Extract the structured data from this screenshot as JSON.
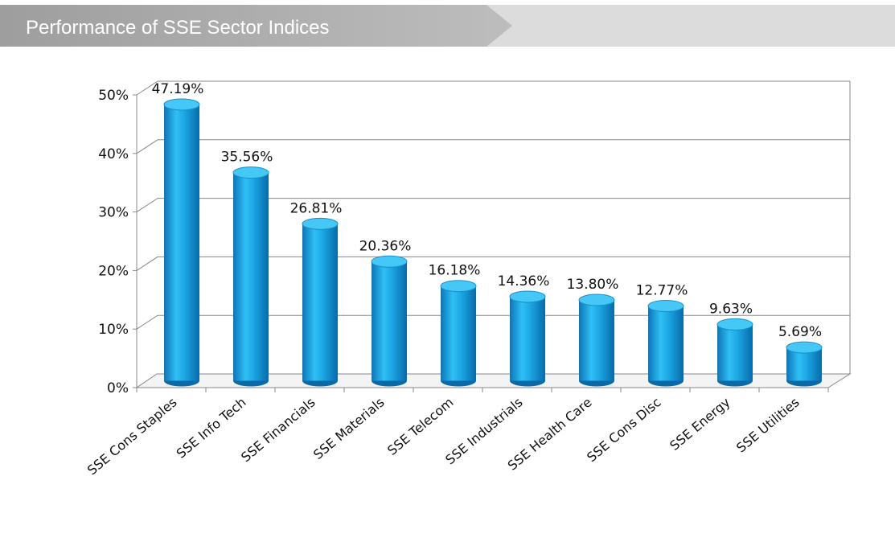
{
  "chart_data": {
    "type": "bar",
    "title": "Performance of SSE Sector Indices",
    "categories": [
      "SSE Cons Staples",
      "SSE Info Tech",
      "SSE Financials",
      "SSE Materials",
      "SSE Telecom",
      "SSE Industrials",
      "SSE Health Care",
      "SSE Cons Disc",
      "SSE Energy",
      "SSE Utilities"
    ],
    "values": [
      47.19,
      35.56,
      26.81,
      20.36,
      16.18,
      14.36,
      13.8,
      12.77,
      9.63,
      5.69
    ],
    "value_labels": [
      "47.19%",
      "35.56%",
      "26.81%",
      "20.36%",
      "16.18%",
      "14.36%",
      "13.80%",
      "12.77%",
      "9.63%",
      "5.69%"
    ],
    "color": "#1aa3e0",
    "ylim": [
      0,
      50
    ],
    "yticks": [
      {
        "value": 0,
        "label": "0%"
      },
      {
        "value": 10,
        "label": "10%"
      },
      {
        "value": 20,
        "label": "20%"
      },
      {
        "value": 30,
        "label": "30%"
      },
      {
        "value": 40,
        "label": "40%"
      },
      {
        "value": 50,
        "label": "50%"
      }
    ],
    "grid": true
  }
}
